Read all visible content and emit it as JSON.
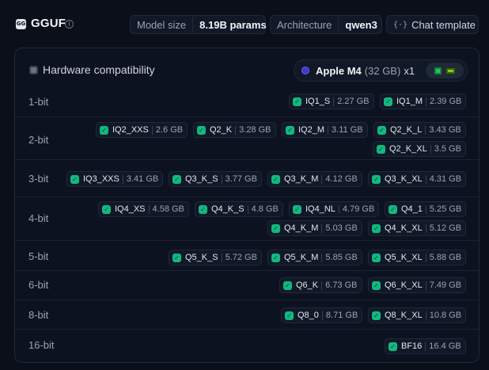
{
  "header": {
    "logo_text": "GG",
    "title": "GGUF",
    "info_icon": "info-icon",
    "model_size_label": "Model size",
    "model_size_value": "8.19B params",
    "architecture_label": "Architecture",
    "architecture_value": "qwen3",
    "chat_template_icon": "braces-icon",
    "chat_template_label": "Chat template"
  },
  "hardware": {
    "title": "Hardware compatibility",
    "device": "Apple M4",
    "memory": "(32 GB)",
    "count": "x1"
  },
  "rows": [
    {
      "label": "1-bit",
      "chips": [
        {
          "name": "IQ1_S",
          "size": "2.27 GB"
        },
        {
          "name": "IQ1_M",
          "size": "2.39 GB"
        }
      ]
    },
    {
      "label": "2-bit",
      "chips": [
        {
          "name": "IQ2_XXS",
          "size": "2.6 GB"
        },
        {
          "name": "Q2_K",
          "size": "3.28 GB"
        },
        {
          "name": "IQ2_M",
          "size": "3.11 GB"
        },
        {
          "name": "Q2_K_L",
          "size": "3.43 GB"
        },
        {
          "name": "Q2_K_XL",
          "size": "3.5 GB"
        }
      ]
    },
    {
      "label": "3-bit",
      "chips": [
        {
          "name": "IQ3_XXS",
          "size": "3.41 GB"
        },
        {
          "name": "Q3_K_S",
          "size": "3.77 GB"
        },
        {
          "name": "Q3_K_M",
          "size": "4.12 GB"
        },
        {
          "name": "Q3_K_XL",
          "size": "4.31 GB"
        }
      ]
    },
    {
      "label": "4-bit",
      "chips": [
        {
          "name": "IQ4_XS",
          "size": "4.58 GB"
        },
        {
          "name": "Q4_K_S",
          "size": "4.8 GB"
        },
        {
          "name": "IQ4_NL",
          "size": "4.79 GB"
        },
        {
          "name": "Q4_1",
          "size": "5.25 GB"
        },
        {
          "name": "Q4_K_M",
          "size": "5.03 GB"
        },
        {
          "name": "Q4_K_XL",
          "size": "5.12 GB"
        }
      ]
    },
    {
      "label": "5-bit",
      "chips": [
        {
          "name": "Q5_K_S",
          "size": "5.72 GB"
        },
        {
          "name": "Q5_K_M",
          "size": "5.85 GB"
        },
        {
          "name": "Q5_K_XL",
          "size": "5.88 GB"
        }
      ]
    },
    {
      "label": "6-bit",
      "chips": [
        {
          "name": "Q6_K",
          "size": "6.73 GB"
        },
        {
          "name": "Q6_K_XL",
          "size": "7.49 GB"
        }
      ]
    },
    {
      "label": "8-bit",
      "chips": [
        {
          "name": "Q8_0",
          "size": "8.71 GB"
        },
        {
          "name": "Q8_K_XL",
          "size": "10.8 GB"
        }
      ]
    },
    {
      "label": "16-bit",
      "chips": [
        {
          "name": "BF16",
          "size": "16.4 GB"
        }
      ]
    }
  ],
  "colors": {
    "background": "#0b0f19",
    "check": "#10b981"
  }
}
